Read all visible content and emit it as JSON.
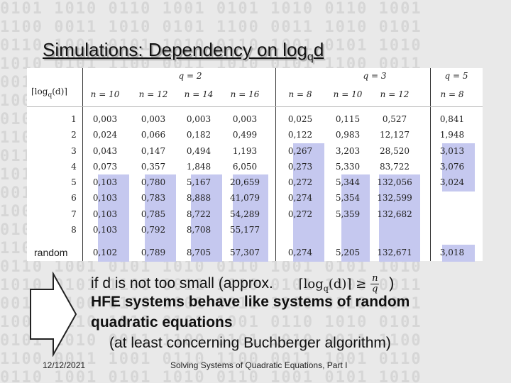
{
  "title": {
    "main": "Simulations: Dependency on log",
    "sub": "q",
    "tail": "d"
  },
  "table": {
    "corner_label": "⌈log",
    "corner_sub": "q",
    "corner_tail": "(d)⌉",
    "q_groups": [
      "q = 2",
      "q = 3",
      "q = 5"
    ],
    "columns": [
      "n = 10",
      "n = 12",
      "n = 14",
      "n = 16",
      "n = 8",
      "n = 10",
      "n = 12",
      "n = 8"
    ],
    "row_labels": [
      "1",
      "2",
      "3",
      "4",
      "5",
      "6",
      "7",
      "8",
      "random"
    ],
    "rows": [
      [
        "0,003",
        "0,003",
        "0,003",
        "0,003",
        "0,025",
        "0,115",
        "0,527",
        "0,841"
      ],
      [
        "0,024",
        "0,066",
        "0,182",
        "0,499",
        "0,122",
        "0,983",
        "12,127",
        "1,948"
      ],
      [
        "0,043",
        "0,147",
        "0,494",
        "1,193",
        "0,267",
        "3,203",
        "28,520",
        "3,013"
      ],
      [
        "0,073",
        "0,357",
        "1,848",
        "6,050",
        "0,273",
        "5,330",
        "83,722",
        "3,076"
      ],
      [
        "0,103",
        "0,780",
        "5,167",
        "20,659",
        "0,272",
        "5,344",
        "132,056",
        "3,024"
      ],
      [
        "0,103",
        "0,783",
        "8,888",
        "41,079",
        "0,274",
        "5,354",
        "132,599",
        ""
      ],
      [
        "0,103",
        "0,785",
        "8,722",
        "54,289",
        "0,272",
        "5,359",
        "132,682",
        ""
      ],
      [
        "0,103",
        "0,792",
        "8,708",
        "55,177",
        "",
        "",
        "",
        ""
      ],
      [
        "0,102",
        "0,789",
        "8,705",
        "57,307",
        "0,274",
        "5,205",
        "132,671",
        "3,018"
      ]
    ]
  },
  "body": {
    "line1_pre": "if d is not too small (approx.",
    "line1_formula": "⌈log",
    "line1_formula_sub": "q",
    "line1_formula_tail": "(d)⌉  ≥",
    "frac_num": "n",
    "frac_den": "q",
    "line1_post": ")",
    "line2": "HFE systems behave like systems of random",
    "line3": "quadratic equations",
    "line4": "(at least concerning Buchberger algorithm)"
  },
  "footer": {
    "date": "12/12/2021",
    "caption": "Solving Systems of Quadratic Equations, Part I"
  },
  "colors": {
    "highlight": "#c5c8ef",
    "background": "#e9e9e9"
  }
}
